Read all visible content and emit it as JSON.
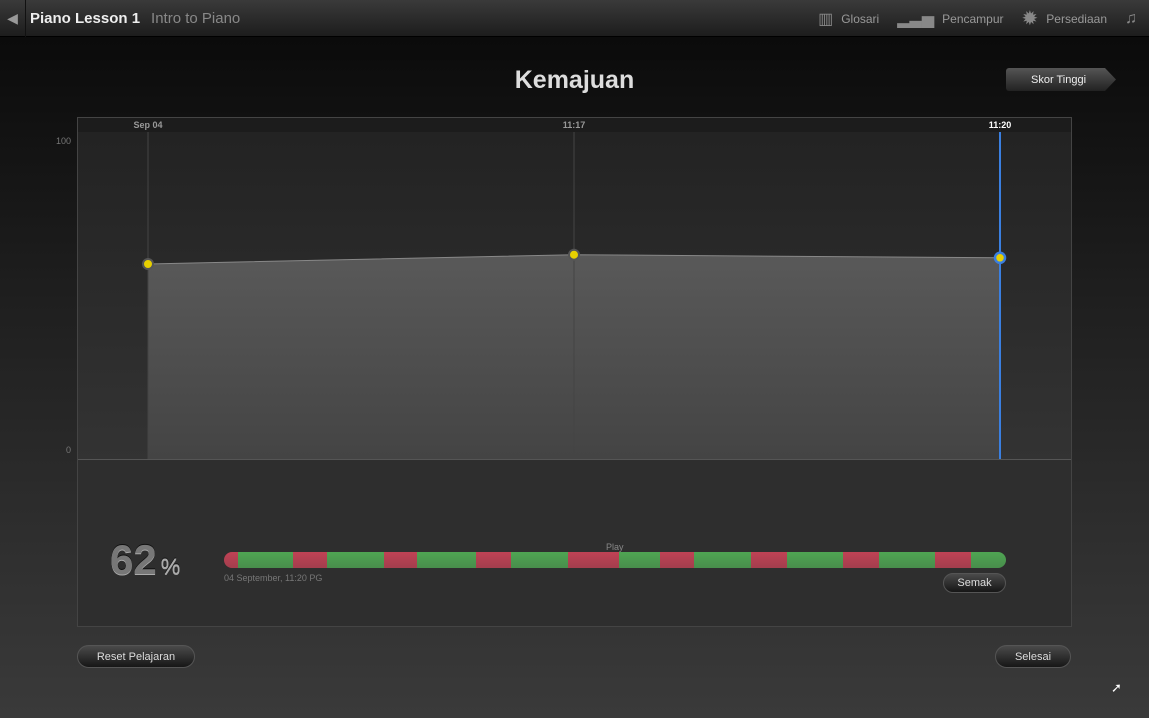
{
  "topbar": {
    "title": "Piano Lesson 1",
    "subtitle": "Intro to Piano",
    "items": [
      {
        "label": "Glosari",
        "icon": "book-icon"
      },
      {
        "label": "Pencampur",
        "icon": "mixer-icon"
      },
      {
        "label": "Persediaan",
        "icon": "gear-icon"
      }
    ]
  },
  "page_title": "Kemajuan",
  "high_score_label": "Skor Tinggi",
  "chart_data": {
    "type": "area",
    "x": [
      "Sep 04",
      "11:17",
      "11:20"
    ],
    "values": [
      60,
      63,
      62
    ],
    "ylim": [
      0,
      100
    ],
    "yticks": [
      "100",
      "0"
    ],
    "selected_index": 2,
    "colors": {
      "point": "#e8d000",
      "selected": "#3a7fe0",
      "fill": "#555555"
    }
  },
  "result": {
    "percent": "62",
    "percent_sign": "%",
    "section_label": "Play",
    "date": "04 September, 11:20 PG",
    "review_label": "Semak",
    "segments": [
      [
        "r",
        1.8
      ],
      [
        "g",
        7
      ],
      [
        "r",
        4.3
      ],
      [
        "g",
        7.3
      ],
      [
        "r",
        4.3
      ],
      [
        "g",
        7.5
      ],
      [
        "r",
        4.5
      ],
      [
        "g",
        7.3
      ],
      [
        "r",
        6.5
      ],
      [
        "g",
        5.2
      ],
      [
        "r",
        4.3
      ],
      [
        "g",
        7.3
      ],
      [
        "r",
        4.6
      ],
      [
        "g",
        7.2
      ],
      [
        "r",
        4.6
      ],
      [
        "g",
        7.2
      ],
      [
        "r",
        4.5
      ],
      [
        "g",
        4.5
      ]
    ],
    "colors": {
      "good": "#4fa553",
      "bad": "#c04255"
    }
  },
  "reset_label": "Reset Pelajaran",
  "done_label": "Selesai"
}
